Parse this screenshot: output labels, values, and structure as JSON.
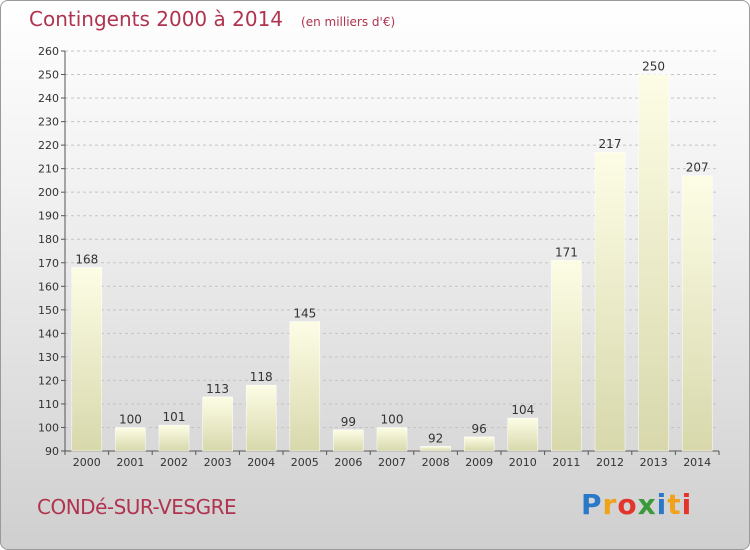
{
  "chart_title": "Contingents 2000 à 2014",
  "chart_subtitle": "(en milliers d'€)",
  "town_name": "CONDé-SUR-VESGRE",
  "brand": {
    "letters": [
      "P",
      "r",
      "o",
      "x",
      "i",
      "t",
      "i"
    ],
    "colors": [
      "#2a78c8",
      "#f0a21a",
      "#e2362c",
      "#3a9a3a",
      "#2a78c8",
      "#f0a21a",
      "#e2362c"
    ]
  },
  "colors": {
    "title": "#b0334f",
    "bar_light": "#fdfde6",
    "bar_dark": "#d9d9b0",
    "grid": "#c8c8c8"
  },
  "chart_data": {
    "type": "bar",
    "title": "Contingents 2000 à 2014",
    "subtitle": "(en milliers d'€)",
    "categories": [
      "2000",
      "2001",
      "2002",
      "2003",
      "2004",
      "2005",
      "2006",
      "2007",
      "2008",
      "2009",
      "2010",
      "2011",
      "2012",
      "2013",
      "2014"
    ],
    "values": [
      168,
      100,
      101,
      113,
      118,
      145,
      99,
      100,
      92,
      96,
      104,
      171,
      217,
      250,
      207
    ],
    "ylim": [
      90,
      260
    ],
    "yticks": [
      90,
      100,
      110,
      120,
      130,
      140,
      150,
      160,
      170,
      180,
      190,
      200,
      210,
      220,
      230,
      240,
      250,
      260
    ],
    "grid": "dashed horizontal",
    "legend": "none"
  }
}
